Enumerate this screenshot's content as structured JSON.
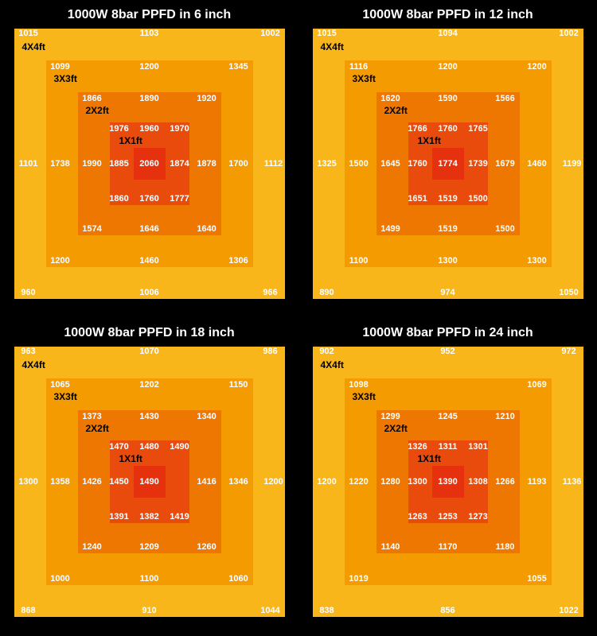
{
  "background_color": "#000000",
  "title_color": "#ffffff",
  "value_color": "#ffffff",
  "zone_label_color": "#000000",
  "title_fontsize": 16,
  "value_fontsize": 11,
  "zone_label_fontsize": 12,
  "ring_colors": {
    "ring4": "#f9b61a",
    "ring3": "#f39b00",
    "ring2": "#ed7700",
    "ring1": "#e84b0c",
    "ring0": "#e6310f"
  },
  "zone_labels": {
    "z4": "4X4ft",
    "z3": "3X3ft",
    "z2": "2X2ft",
    "z1": "1X1ft"
  },
  "panels": [
    {
      "title": "1000W 8bar PPFD in 6 inch",
      "r4": {
        "tl": "1015",
        "tc": "1103",
        "tr": "1002",
        "bl": "960",
        "bc": "1006",
        "br": "966"
      },
      "r3": {
        "tl": "1099",
        "tc": "1200",
        "tr": "1345",
        "bl": "1200",
        "bc": "1460",
        "br": "1306",
        "ml": "1101",
        "mr": "1112"
      },
      "r2": {
        "tl": "1866",
        "tc": "1890",
        "tr": "1920",
        "bl": "1574",
        "bc": "1646",
        "br": "1640",
        "ml": "1738",
        "mr": "1700"
      },
      "r1": {
        "tl": "1976",
        "tc": "1960",
        "tr": "1970",
        "bl": "1860",
        "bc": "1760",
        "br": "1777",
        "ml": "1990",
        "mr": "1878"
      },
      "r0": {
        "ml": "1885",
        "mc": "2060",
        "mr": "1874"
      }
    },
    {
      "title": "1000W 8bar PPFD in 12 inch",
      "r4": {
        "tl": "1015",
        "tc": "1094",
        "tr": "1002",
        "bl": "890",
        "bc": "974",
        "br": "1050"
      },
      "r3": {
        "tl": "1116",
        "tc": "1200",
        "tr": "1200",
        "bl": "1100",
        "bc": "1300",
        "br": "1300",
        "ml": "1325",
        "mr": "1199"
      },
      "r2": {
        "tl": "1620",
        "tc": "1590",
        "tr": "1566",
        "bl": "1499",
        "bc": "1519",
        "br": "1500",
        "ml": "1500",
        "mr": "1460"
      },
      "r1": {
        "tl": "1766",
        "tc": "1760",
        "tr": "1765",
        "bl": "1651",
        "bc": "1519",
        "br": "1500",
        "ml": "1645",
        "mr": "1679"
      },
      "r0": {
        "ml": "1760",
        "mc": "1774",
        "mr": "1739"
      }
    },
    {
      "title": "1000W 8bar PPFD in 18 inch",
      "r4": {
        "tl": "963",
        "tc": "1070",
        "tr": "986",
        "bl": "868",
        "bc": "910",
        "br": "1044"
      },
      "r3": {
        "tl": "1065",
        "tc": "1202",
        "tr": "1150",
        "bl": "1000",
        "bc": "1100",
        "br": "1060",
        "ml": "1300",
        "mr": "1200"
      },
      "r2": {
        "tl": "1373",
        "tc": "1430",
        "tr": "1340",
        "bl": "1240",
        "bc": "1209",
        "br": "1260",
        "ml": "1358",
        "mr": "1346"
      },
      "r1": {
        "tl": "1470",
        "tc": "1480",
        "tr": "1490",
        "bl": "1391",
        "bc": "1382",
        "br": "1419",
        "ml": "1426",
        "mr": "1416"
      },
      "r0": {
        "ml": "1450",
        "mc": "1490",
        "mr": ""
      }
    },
    {
      "title": "1000W 8bar PPFD in 24 inch",
      "r4": {
        "tl": "902",
        "tc": "952",
        "tr": "972",
        "bl": "838",
        "bc": "856",
        "br": "1022"
      },
      "r3": {
        "tl": "1098",
        "tc": "",
        "tr": "1069",
        "bl": "1019",
        "bc": "",
        "br": "1055",
        "ml": "1200",
        "mr": "1136"
      },
      "r2": {
        "tl": "1299",
        "tc": "1245",
        "tr": "1210",
        "bl": "1140",
        "bc": "1170",
        "br": "1180",
        "ml": "1220",
        "mr": "1193"
      },
      "r1": {
        "tl": "1326",
        "tc": "1311",
        "tr": "1301",
        "bl": "1263",
        "bc": "1253",
        "br": "1273",
        "ml": "1280",
        "mr": "1266"
      },
      "r0": {
        "ml": "1300",
        "mc": "1390",
        "mr": "1308"
      }
    }
  ]
}
